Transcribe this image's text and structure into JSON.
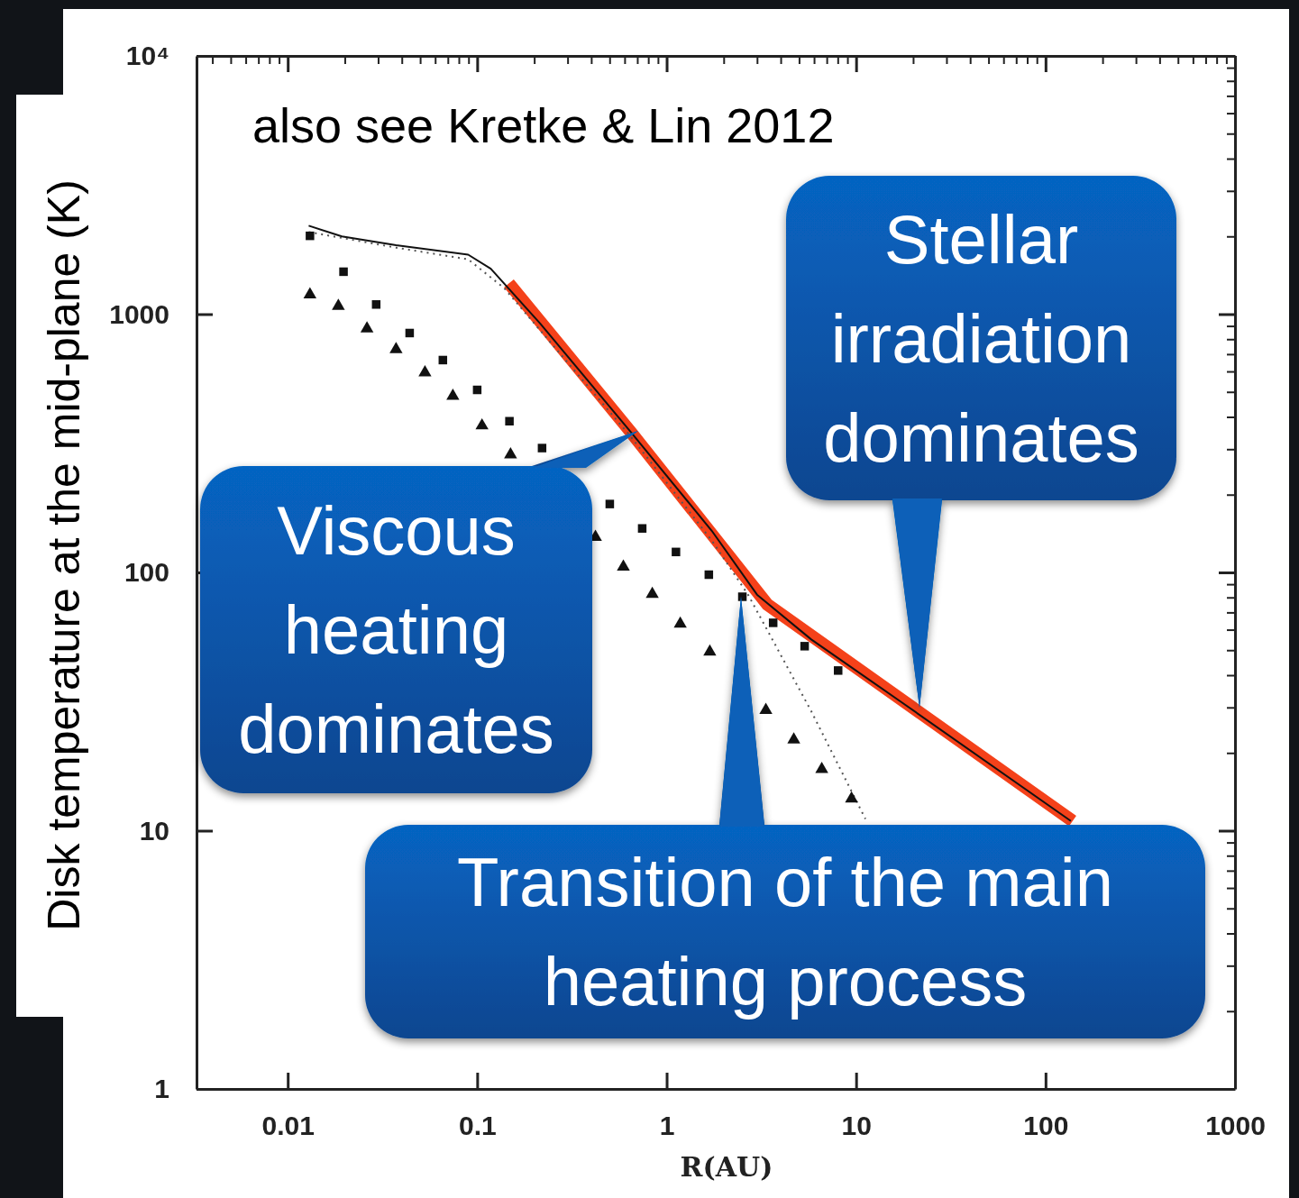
{
  "chart_data": {
    "type": "line",
    "xlabel": "R(AU)",
    "ylabel": "Disk temperature at the mid-plane (K)",
    "log": "xy",
    "xlim": [
      0.0033,
      1000
    ],
    "ylim": [
      1,
      10000
    ],
    "xticks": [
      {
        "value": 0.004,
        "label": null
      },
      {
        "value": 0.005,
        "label": null
      },
      {
        "value": 0.006,
        "label": null
      },
      {
        "value": 0.007,
        "label": null
      },
      {
        "value": 0.008,
        "label": null
      },
      {
        "value": 0.009,
        "label": null
      },
      0.01,
      {
        "value": 0.02,
        "label": null
      },
      {
        "value": 0.03,
        "label": null
      },
      {
        "value": 0.04,
        "label": null
      },
      {
        "value": 0.05,
        "label": null
      },
      {
        "value": 0.06,
        "label": null
      },
      {
        "value": 0.07,
        "label": null
      },
      {
        "value": 0.08,
        "label": null
      },
      {
        "value": 0.09,
        "label": null
      },
      0.1,
      {
        "value": 0.2,
        "label": null
      },
      {
        "value": 0.3,
        "label": null
      },
      {
        "value": 0.4,
        "label": null
      },
      {
        "value": 0.5,
        "label": null
      },
      {
        "value": 0.6,
        "label": null
      },
      {
        "value": 0.7,
        "label": null
      },
      {
        "value": 0.8,
        "label": null
      },
      {
        "value": 0.9,
        "label": null
      },
      1,
      {
        "value": 2,
        "label": null
      },
      {
        "value": 3,
        "label": null
      },
      {
        "value": 4,
        "label": null
      },
      {
        "value": 5,
        "label": null
      },
      {
        "value": 6,
        "label": null
      },
      {
        "value": 7,
        "label": null
      },
      {
        "value": 8,
        "label": null
      },
      {
        "value": 9,
        "label": null
      },
      10,
      {
        "value": 20,
        "label": null
      },
      {
        "value": 30,
        "label": null
      },
      {
        "value": 40,
        "label": null
      },
      {
        "value": 50,
        "label": null
      },
      {
        "value": 60,
        "label": null
      },
      {
        "value": 70,
        "label": null
      },
      {
        "value": 80,
        "label": null
      },
      {
        "value": 90,
        "label": null
      },
      100,
      {
        "value": 200,
        "label": null
      },
      {
        "value": 300,
        "label": null
      },
      {
        "value": 400,
        "label": null
      },
      {
        "value": 500,
        "label": null
      },
      {
        "value": 600,
        "label": null
      },
      {
        "value": 700,
        "label": null
      },
      {
        "value": 800,
        "label": null
      },
      {
        "value": 900,
        "label": null
      },
      1000
    ],
    "yticks": [
      1,
      {
        "value": 2,
        "label": null
      },
      {
        "value": 3,
        "label": null
      },
      {
        "value": 4,
        "label": null
      },
      {
        "value": 5,
        "label": null
      },
      {
        "value": 6,
        "label": null
      },
      {
        "value": 7,
        "label": null
      },
      {
        "value": 8,
        "label": null
      },
      {
        "value": 9,
        "label": null
      },
      10,
      {
        "value": 20,
        "label": null
      },
      {
        "value": 30,
        "label": null
      },
      {
        "value": 40,
        "label": null
      },
      {
        "value": 50,
        "label": null
      },
      {
        "value": 60,
        "label": null
      },
      {
        "value": 70,
        "label": null
      },
      {
        "value": 80,
        "label": null
      },
      {
        "value": 90,
        "label": null
      },
      100,
      {
        "value": 200,
        "label": null
      },
      {
        "value": 300,
        "label": null
      },
      {
        "value": 400,
        "label": null
      },
      {
        "value": 500,
        "label": null
      },
      {
        "value": 600,
        "label": null
      },
      {
        "value": 700,
        "label": null
      },
      {
        "value": 800,
        "label": null
      },
      {
        "value": 900,
        "label": null
      },
      1000,
      {
        "value": 2000,
        "label": null
      },
      {
        "value": 3000,
        "label": null
      },
      {
        "value": 4000,
        "label": null
      },
      {
        "value": 5000,
        "label": null
      },
      {
        "value": 6000,
        "label": null
      },
      {
        "value": 7000,
        "label": null
      },
      {
        "value": 8000,
        "label": null
      },
      {
        "value": 9000,
        "label": null
      },
      {
        "value": 10000,
        "label": "10⁴"
      }
    ],
    "series": [
      {
        "type": "line",
        "color": "#111111",
        "marker": "none",
        "line_style": "solid",
        "x": [
          0.0129,
          0.0193,
          0.0373,
          0.0896,
          0.118,
          0.215,
          0.646,
          1.73,
          3.0,
          5.8,
          17.3,
          136
        ],
        "values": [
          2200,
          2000,
          1850,
          1700,
          1500,
          920,
          350,
          145,
          82,
          55,
          31.5,
          10.9
        ]
      },
      {
        "type": "line",
        "color": "#555555",
        "marker": "none",
        "line_style": "dotted",
        "x": [
          0.0129,
          0.0373,
          0.0896,
          0.139,
          0.646,
          1.73,
          2.69,
          5.8,
          11.2
        ],
        "values": [
          2080,
          1810,
          1630,
          1260,
          336,
          133,
          82,
          29,
          11.1
        ]
      },
      {
        "type": "scatter",
        "color": "#111111",
        "marker": "square",
        "x": [
          0.0131,
          0.0197,
          0.0293,
          0.044,
          0.0659,
          0.1,
          0.148,
          0.22,
          0.501,
          0.743,
          1.12,
          1.67,
          2.51,
          3.65,
          5.35,
          8.04
        ],
        "values": [
          2010,
          1460,
          1090,
          845,
          664,
          509,
          385,
          303,
          184,
          148,
          120,
          98,
          80.5,
          63.8,
          51.8,
          41.7
        ]
      },
      {
        "type": "scatter",
        "color": "#111111",
        "marker": "triangle",
        "x": [
          0.0131,
          0.0185,
          0.0262,
          0.0373,
          0.053,
          0.0744,
          0.106,
          0.15,
          0.421,
          0.591,
          0.84,
          1.18,
          1.69,
          3.34,
          4.69,
          6.59,
          9.46
        ],
        "values": [
          1190,
          1075,
          879,
          731,
          594,
          482,
          370,
          286,
          137,
          105,
          82.4,
          63.2,
          49.3,
          29.3,
          22.5,
          17.3,
          13.3
        ]
      },
      {
        "type": "line",
        "color": "#f4411a",
        "marker": "none",
        "line_style": "solid",
        "x": [
          0.147,
          0.646,
          3.41,
          139
        ],
        "values": [
          1315,
          350,
          75,
          10.9
        ]
      }
    ],
    "annotations": [
      "also see Kretke & Lin 2012",
      "Viscous heating dominates",
      "Stellar irradiation dominates",
      "Transition of the main heating process"
    ]
  }
}
